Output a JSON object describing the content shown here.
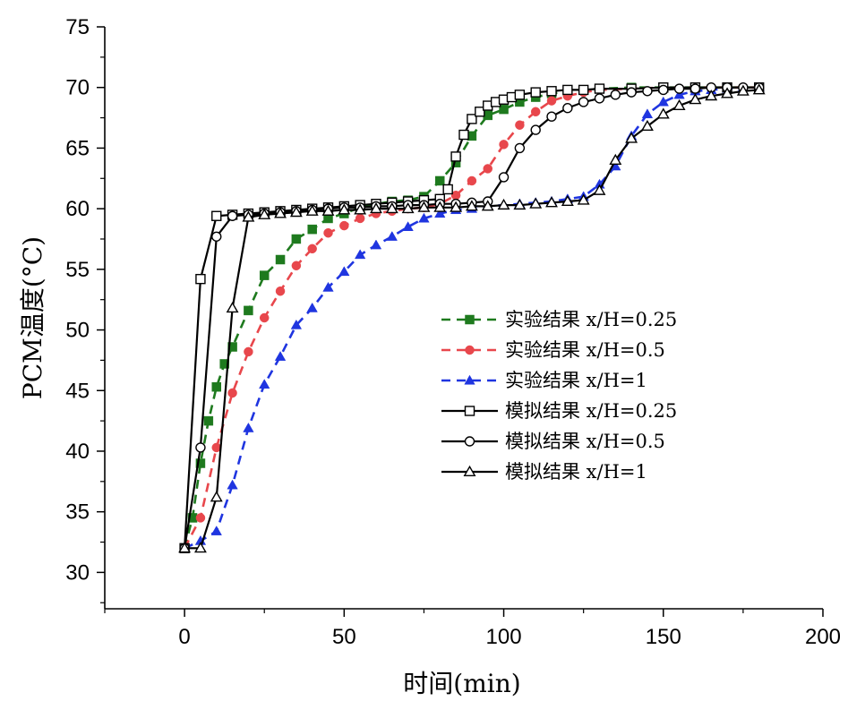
{
  "chart_data": {
    "type": "line",
    "title": "",
    "xlabel": "时间(min)",
    "ylabel": "PCM温度(°C)",
    "xlim": [
      -25,
      200
    ],
    "ylim": [
      27,
      75
    ],
    "xticks": [
      0,
      50,
      100,
      150,
      200
    ],
    "yticks": [
      30,
      35,
      40,
      45,
      50,
      55,
      60,
      65,
      70,
      75
    ],
    "grid": false,
    "legend_position": "center-right",
    "series": [
      {
        "name": "实验结果 x/H=0.25",
        "color": "#1e7a1e",
        "line_style": "dashed",
        "marker": "filled-square",
        "x": [
          0,
          2.5,
          5,
          7.5,
          10,
          12.5,
          15,
          20,
          25,
          30,
          35,
          40,
          45,
          50,
          55,
          60,
          65,
          70,
          75,
          80,
          85,
          90,
          95,
          100,
          105,
          110,
          115,
          120,
          130,
          140,
          150,
          160,
          170,
          180
        ],
        "y": [
          32,
          34.5,
          39,
          42.5,
          45.3,
          47.2,
          48.6,
          51.6,
          54.5,
          55.8,
          57.5,
          58.3,
          59.2,
          59.6,
          60.1,
          60.4,
          60.6,
          60.7,
          61.0,
          62.3,
          63.8,
          66.0,
          67.7,
          68.2,
          68.8,
          69.2,
          69.5,
          69.7,
          69.9,
          70.0,
          70.0,
          70.0,
          70.0,
          70.0
        ]
      },
      {
        "name": "实验结果 x/H=0.5",
        "color": "#e8474c",
        "line_style": "dashed",
        "marker": "filled-circle",
        "x": [
          0,
          5,
          10,
          15,
          20,
          25,
          30,
          35,
          40,
          45,
          50,
          55,
          60,
          65,
          70,
          75,
          80,
          85,
          90,
          95,
          100,
          105,
          110,
          115,
          120,
          125,
          130,
          140,
          150,
          160,
          170,
          180
        ],
        "y": [
          32,
          34.5,
          40.3,
          44.8,
          48.2,
          51.0,
          53.2,
          55.3,
          56.7,
          58.0,
          58.6,
          59.2,
          59.6,
          59.8,
          60.0,
          60.1,
          60.4,
          61.1,
          62.3,
          63.3,
          65.3,
          66.9,
          68.0,
          68.9,
          69.3,
          69.6,
          69.8,
          69.9,
          70.0,
          70.0,
          70.0,
          70.0
        ]
      },
      {
        "name": "实验结果 x/H=1",
        "color": "#1f35e0",
        "line_style": "dashed",
        "marker": "filled-triangle",
        "x": [
          0,
          5,
          10,
          15,
          20,
          25,
          30,
          35,
          40,
          45,
          50,
          55,
          60,
          65,
          70,
          75,
          80,
          85,
          90,
          95,
          100,
          105,
          110,
          115,
          120,
          125,
          130,
          135,
          140,
          145,
          150,
          155,
          160,
          165,
          170,
          175,
          180
        ],
        "y": [
          32,
          32.6,
          33.4,
          37.2,
          41.9,
          45.5,
          47.8,
          50.4,
          51.8,
          53.5,
          54.8,
          56.2,
          57.0,
          57.7,
          58.5,
          59.2,
          59.6,
          59.9,
          60.0,
          60.2,
          60.3,
          60.4,
          60.5,
          60.6,
          60.8,
          61.0,
          62.0,
          63.5,
          66.0,
          67.8,
          68.8,
          69.4,
          69.7,
          69.8,
          69.9,
          70.0,
          70.0
        ]
      },
      {
        "name": "模拟结果 x/H=0.25",
        "color": "#000000",
        "line_style": "solid",
        "marker": "open-square",
        "x": [
          0,
          5,
          10,
          15,
          20,
          25,
          30,
          35,
          40,
          45,
          50,
          55,
          60,
          65,
          70,
          75,
          80,
          82.5,
          85,
          87.5,
          90,
          92.5,
          95,
          97.5,
          100,
          102.5,
          105,
          110,
          115,
          120,
          125,
          130,
          140,
          150,
          160,
          170,
          180
        ],
        "y": [
          32,
          54.2,
          59.4,
          59.5,
          59.6,
          59.7,
          59.8,
          59.9,
          60.0,
          60.1,
          60.2,
          60.3,
          60.4,
          60.5,
          60.6,
          60.7,
          60.8,
          61.6,
          64.3,
          66.1,
          67.4,
          68.0,
          68.5,
          68.8,
          69.0,
          69.2,
          69.4,
          69.6,
          69.7,
          69.8,
          69.8,
          69.9,
          69.9,
          70.0,
          70.0,
          70.0,
          70.0
        ]
      },
      {
        "name": "模拟结果 x/H=0.5",
        "color": "#000000",
        "line_style": "solid",
        "marker": "open-circle",
        "x": [
          0,
          5,
          10,
          15,
          20,
          25,
          30,
          35,
          40,
          45,
          50,
          55,
          60,
          65,
          70,
          75,
          80,
          85,
          90,
          95,
          100,
          105,
          110,
          115,
          120,
          125,
          130,
          135,
          140,
          145,
          150,
          155,
          160,
          165,
          170,
          175,
          180
        ],
        "y": [
          32,
          40.3,
          57.7,
          59.4,
          59.5,
          59.6,
          59.7,
          59.8,
          59.9,
          60.0,
          60.1,
          60.1,
          60.2,
          60.2,
          60.3,
          60.3,
          60.4,
          60.4,
          60.5,
          60.6,
          62.6,
          65.0,
          66.5,
          67.6,
          68.3,
          68.8,
          69.1,
          69.4,
          69.6,
          69.7,
          69.8,
          69.9,
          69.9,
          70.0,
          70.0,
          70.0,
          70.0
        ]
      },
      {
        "name": "模拟结果 x/H=1",
        "color": "#000000",
        "line_style": "solid",
        "marker": "open-triangle",
        "x": [
          0,
          5,
          10,
          15,
          20,
          25,
          30,
          35,
          40,
          45,
          50,
          55,
          60,
          65,
          70,
          75,
          80,
          85,
          90,
          95,
          100,
          105,
          110,
          115,
          120,
          125,
          130,
          135,
          140,
          145,
          150,
          155,
          160,
          165,
          170,
          175,
          180
        ],
        "y": [
          32,
          32,
          36.2,
          51.8,
          59.3,
          59.5,
          59.6,
          59.7,
          59.8,
          59.8,
          59.9,
          59.9,
          60.0,
          60.0,
          60.0,
          60.1,
          60.1,
          60.1,
          60.2,
          60.2,
          60.3,
          60.3,
          60.4,
          60.5,
          60.6,
          60.7,
          61.5,
          64.0,
          65.8,
          66.8,
          67.8,
          68.5,
          69.0,
          69.3,
          69.5,
          69.7,
          69.8
        ]
      }
    ]
  }
}
